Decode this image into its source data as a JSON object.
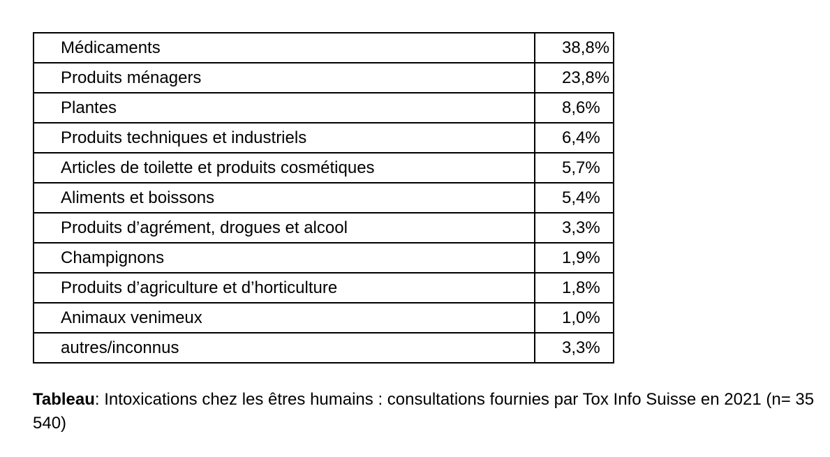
{
  "table": {
    "rows": [
      {
        "category": "Médicaments",
        "value": "38,8%"
      },
      {
        "category": "Produits ménagers",
        "value": "23,8%"
      },
      {
        "category": "Plantes",
        "value": "8,6%"
      },
      {
        "category": "Produits techniques et industriels",
        "value": "6,4%"
      },
      {
        "category": "Articles de toilette et produits cosmétiques",
        "value": "5,7%"
      },
      {
        "category": "Aliments et boissons",
        "value": "5,4%"
      },
      {
        "category": "Produits d’agrément, drogues et alcool",
        "value": "3,3%"
      },
      {
        "category": "Champignons",
        "value": "1,9%"
      },
      {
        "category": "Produits d’agriculture et d’horticulture",
        "value": "1,8%"
      },
      {
        "category": "Animaux venimeux",
        "value": "1,0%"
      },
      {
        "category": "autres/inconnus",
        "value": "3,3%"
      }
    ]
  },
  "caption": {
    "label": "Tableau",
    "text": ": Intoxications chez les êtres humains : consultations fournies par Tox Info Suisse en 2021 (n= 35 540)"
  }
}
